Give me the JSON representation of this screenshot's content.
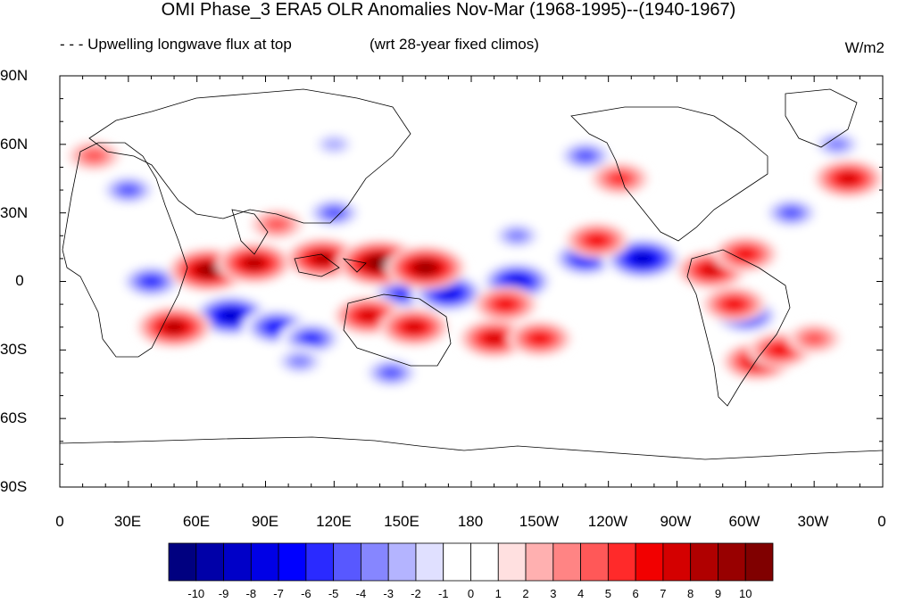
{
  "title": "OMI Phase_3 ERA5 OLR Anomalies Nov-Mar (1968-1995)--(1940-1967)",
  "subtitle_left": "- - - Upwelling longwave flux at top",
  "subtitle_center": "(wrt 28-year fixed climos)",
  "units": "W/m2",
  "lat_labels": [
    "90N",
    "60N",
    "30N",
    "0",
    "30S",
    "60S",
    "90S"
  ],
  "lon_labels": [
    "0",
    "30E",
    "60E",
    "90E",
    "120E",
    "150E",
    "180",
    "150W",
    "120W",
    "90W",
    "60W",
    "30W",
    "0"
  ],
  "colorbar": {
    "labels": [
      "-10",
      "-9",
      "-8",
      "-7",
      "-6",
      "-5",
      "-4",
      "-3",
      "-2",
      "-1",
      "0",
      "1",
      "2",
      "3",
      "4",
      "5",
      "6",
      "7",
      "8",
      "9",
      "10"
    ],
    "colors": [
      "#000080",
      "#0000a8",
      "#0000c8",
      "#0000e6",
      "#0000ff",
      "#2a2aff",
      "#5858ff",
      "#8686ff",
      "#b4b4ff",
      "#e0e0ff",
      "#ffffff",
      "#ffffff",
      "#ffe0e0",
      "#ffb0b0",
      "#ff8484",
      "#ff5858",
      "#ff2a2a",
      "#f20000",
      "#d40000",
      "#b00000",
      "#980000",
      "#800000"
    ]
  },
  "anomaly_blobs": [
    {
      "lon": 200,
      "lat": 0,
      "value": -8
    },
    {
      "lon": 150,
      "lat": -5,
      "value": -6
    },
    {
      "lon": 230,
      "lat": 10,
      "value": -7
    },
    {
      "lon": 255,
      "lat": 10,
      "value": -9
    },
    {
      "lon": 75,
      "lat": -15,
      "value": -9
    },
    {
      "lon": 95,
      "lat": -20,
      "value": -7
    },
    {
      "lon": 110,
      "lat": -25,
      "value": -6
    },
    {
      "lon": 170,
      "lat": -5,
      "value": -8
    },
    {
      "lon": 40,
      "lat": 0,
      "value": -6
    },
    {
      "lon": 120,
      "lat": 30,
      "value": -5
    },
    {
      "lon": 30,
      "lat": 40,
      "value": -5
    },
    {
      "lon": 300,
      "lat": -15,
      "value": -7
    },
    {
      "lon": 320,
      "lat": 30,
      "value": -5
    },
    {
      "lon": 230,
      "lat": 55,
      "value": -5
    },
    {
      "lon": 200,
      "lat": 20,
      "value": -4
    },
    {
      "lon": 145,
      "lat": -40,
      "value": -5
    },
    {
      "lon": 105,
      "lat": -35,
      "value": -4
    },
    {
      "lon": 340,
      "lat": 60,
      "value": -4
    },
    {
      "lon": 120,
      "lat": 60,
      "value": -3
    },
    {
      "lon": 65,
      "lat": 5,
      "value": 9
    },
    {
      "lon": 85,
      "lat": 8,
      "value": 8
    },
    {
      "lon": 115,
      "lat": 10,
      "value": 8
    },
    {
      "lon": 140,
      "lat": 8,
      "value": 10
    },
    {
      "lon": 160,
      "lat": 6,
      "value": 9
    },
    {
      "lon": 135,
      "lat": -15,
      "value": 7
    },
    {
      "lon": 155,
      "lat": -20,
      "value": 7
    },
    {
      "lon": 50,
      "lat": -20,
      "value": 8
    },
    {
      "lon": 195,
      "lat": -10,
      "value": 6
    },
    {
      "lon": 190,
      "lat": -25,
      "value": 7
    },
    {
      "lon": 210,
      "lat": -25,
      "value": 6
    },
    {
      "lon": 235,
      "lat": 18,
      "value": 6
    },
    {
      "lon": 285,
      "lat": 5,
      "value": 7
    },
    {
      "lon": 300,
      "lat": 12,
      "value": 6
    },
    {
      "lon": 295,
      "lat": -10,
      "value": 6
    },
    {
      "lon": 305,
      "lat": -35,
      "value": 7
    },
    {
      "lon": 315,
      "lat": -30,
      "value": 6
    },
    {
      "lon": 245,
      "lat": 45,
      "value": 5
    },
    {
      "lon": 345,
      "lat": 45,
      "value": 7
    },
    {
      "lon": 15,
      "lat": 55,
      "value": 4
    },
    {
      "lon": 95,
      "lat": 25,
      "value": 4
    },
    {
      "lon": 330,
      "lat": -25,
      "value": 4
    }
  ]
}
